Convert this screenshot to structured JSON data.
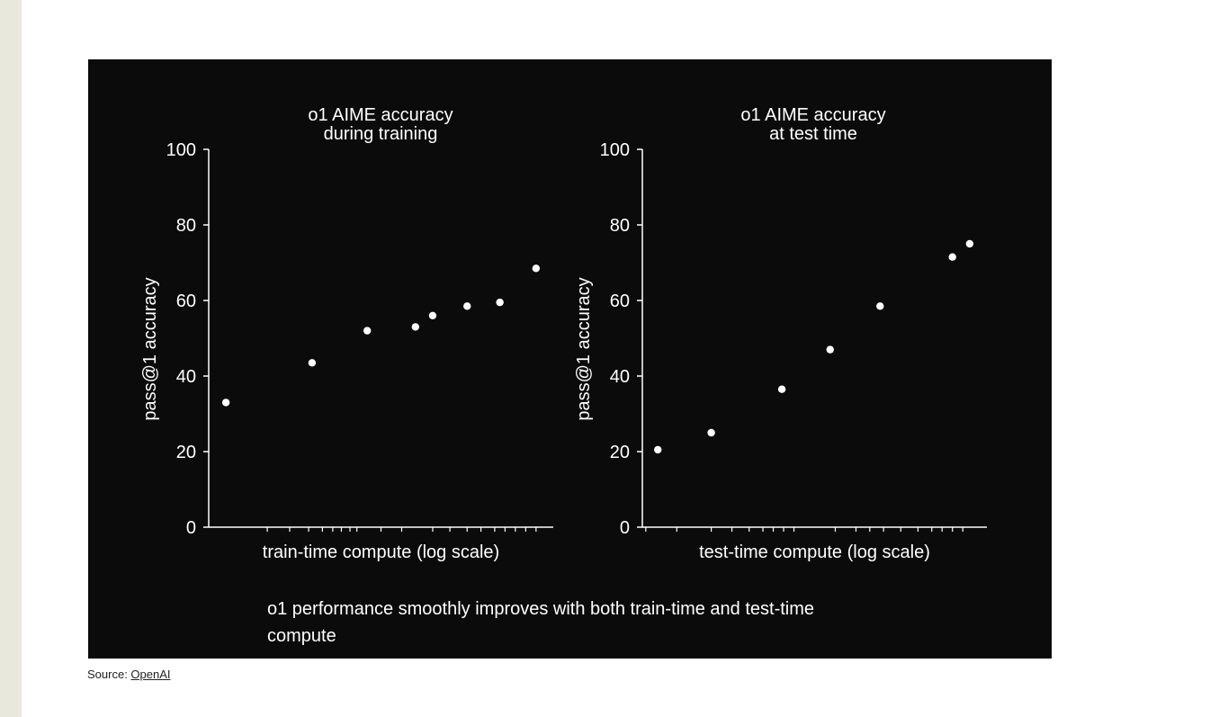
{
  "colors": {
    "figure_background": "#0b0b0b",
    "foreground": "#ffffff",
    "side_strip": "#e8e8dc"
  },
  "chart_data": [
    {
      "type": "scatter",
      "title": "o1 AIME accuracy\nduring training",
      "title_lines": [
        "o1 AIME accuracy",
        "during training"
      ],
      "xlabel": "train-time compute (log scale)",
      "ylabel": "pass@1 accuracy",
      "x_scale": "log",
      "ylim": [
        0,
        100
      ],
      "yticks": [
        0,
        20,
        40,
        60,
        80,
        100
      ],
      "grid": false,
      "x_ticks_log": [
        0.17,
        0.235,
        0.29,
        0.33,
        0.36,
        0.385,
        0.41,
        0.43,
        0.5,
        0.56,
        0.65,
        0.7,
        0.75,
        0.79,
        0.83,
        0.86,
        0.89,
        0.92,
        0.95
      ],
      "x": [
        0.05,
        0.3,
        0.46,
        0.6,
        0.65,
        0.75,
        0.845,
        0.95
      ],
      "y": [
        33,
        43.5,
        52,
        53,
        56,
        58.5,
        59.5,
        68.5
      ]
    },
    {
      "type": "scatter",
      "title": "o1 AIME accuracy\nat test time",
      "title_lines": [
        "o1 AIME accuracy",
        "at test time"
      ],
      "xlabel": "test-time compute (log scale)",
      "ylabel": "pass@1 accuracy",
      "x_scale": "log",
      "ylim": [
        0,
        100
      ],
      "yticks": [
        0,
        20,
        40,
        60,
        80,
        100
      ],
      "grid": false,
      "x_ticks_log": [
        0.01,
        0.1,
        0.2,
        0.26,
        0.31,
        0.35,
        0.38,
        0.41,
        0.44,
        0.56,
        0.62,
        0.66,
        0.7,
        0.75,
        0.8,
        0.84,
        0.87,
        0.9,
        0.93
      ],
      "x": [
        0.045,
        0.2,
        0.405,
        0.545,
        0.69,
        0.9,
        0.95
      ],
      "y": [
        20.5,
        25,
        36.5,
        47,
        58.5,
        71.5,
        75
      ]
    }
  ],
  "caption": "o1 performance smoothly improves with both train-time and test-time compute",
  "source": {
    "prefix": "Source: ",
    "link_text": "OpenAI"
  }
}
